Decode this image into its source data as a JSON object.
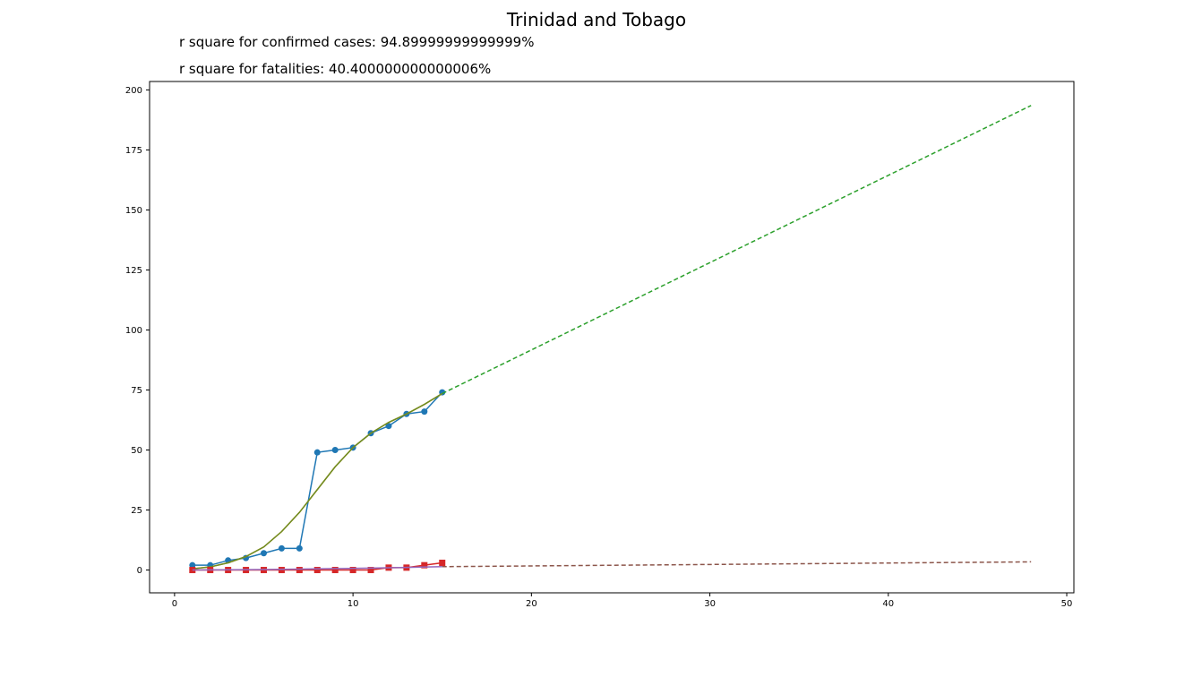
{
  "title": "Trinidad and Tobago",
  "notes": {
    "confirmed": "r square for confirmed cases: 94.89999999999999%",
    "fatalities": "r square for fatalities: 40.400000000000006%"
  },
  "chart_data": {
    "type": "line",
    "title": "Trinidad and Tobago",
    "xlabel": "",
    "ylabel": "",
    "xlim": [
      -1.4,
      50.4
    ],
    "ylim": [
      -9.5,
      203.5
    ],
    "xticks": [
      0,
      10,
      20,
      30,
      40,
      50
    ],
    "yticks": [
      0,
      25,
      50,
      75,
      100,
      125,
      150,
      175,
      200
    ],
    "grid": false,
    "series": [
      {
        "style": "line-marker-circle",
        "color": "#1f77b4",
        "x": [
          1,
          2,
          3,
          4,
          5,
          6,
          7,
          8,
          9,
          10,
          11,
          12,
          13,
          14,
          15
        ],
        "y": [
          2,
          2,
          4,
          5,
          7,
          9,
          9,
          49,
          50,
          51,
          57,
          60,
          65,
          66,
          74
        ]
      },
      {
        "style": "line",
        "color": "#ff7f0e",
        "x": [
          1,
          2,
          3,
          4,
          5,
          6,
          7,
          8,
          9,
          10,
          11,
          12,
          13,
          14,
          15
        ],
        "y": [
          0.5,
          1.3,
          3,
          5.6,
          9.6,
          16,
          24,
          33.5,
          43,
          51,
          57,
          61.5,
          65,
          69,
          73.5
        ]
      },
      {
        "style": "line",
        "color": "#6b8e23",
        "x": [
          1,
          2,
          3,
          4,
          5,
          6,
          7,
          8,
          9,
          10,
          11,
          12,
          13,
          14,
          15
        ],
        "y": [
          0.5,
          1.3,
          3,
          5.6,
          9.6,
          16,
          24,
          33.5,
          43,
          51,
          57,
          61.5,
          65,
          69,
          73.5
        ]
      },
      {
        "style": "dashed",
        "color": "#2ca02c",
        "x": [
          15,
          48
        ],
        "y": [
          73.5,
          193.5
        ]
      },
      {
        "style": "line-marker-square",
        "color": "#d62728",
        "x": [
          1,
          2,
          3,
          4,
          5,
          6,
          7,
          8,
          9,
          10,
          11,
          12,
          13,
          14,
          15
        ],
        "y": [
          0,
          0,
          0,
          0,
          0,
          0,
          0,
          0,
          0,
          0,
          0,
          1,
          1,
          2,
          3
        ]
      },
      {
        "style": "line",
        "color": "#9467bd",
        "x": [
          1,
          3,
          5,
          7,
          9,
          11,
          13,
          15
        ],
        "y": [
          0,
          0.1,
          0.2,
          0.4,
          0.6,
          0.8,
          1.1,
          1.4
        ]
      },
      {
        "style": "dashed",
        "color": "#8c564b",
        "x": [
          15,
          48
        ],
        "y": [
          1.4,
          3.4
        ]
      }
    ]
  }
}
